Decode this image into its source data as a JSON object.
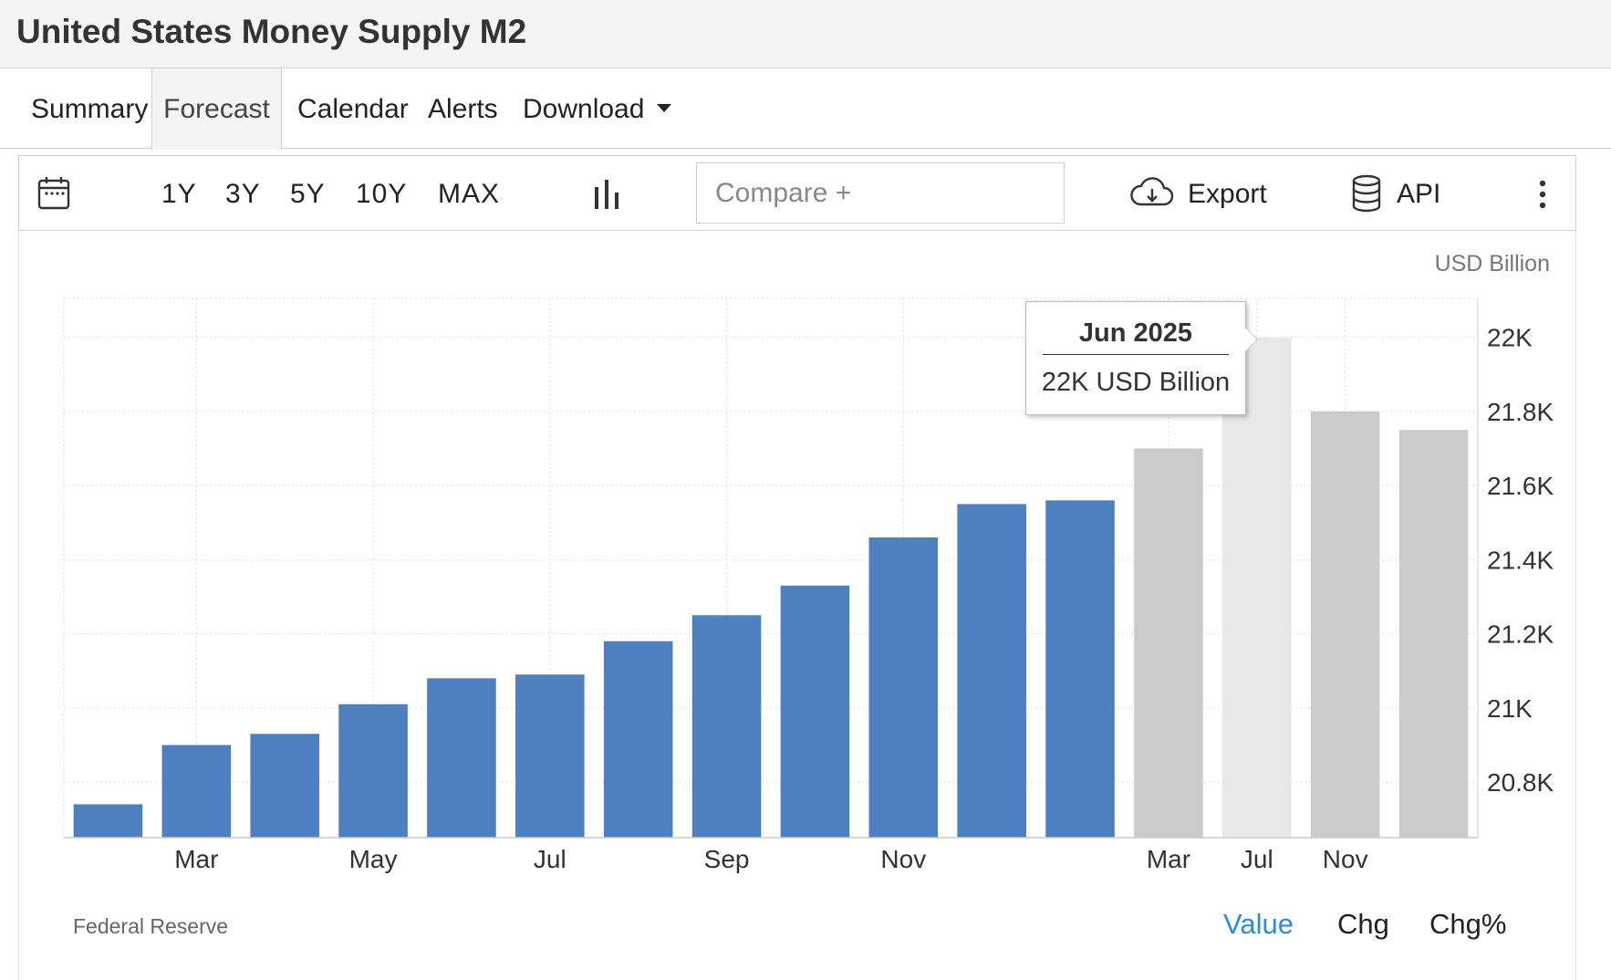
{
  "header": {
    "title": "United States Money Supply M2"
  },
  "tabs": [
    {
      "label": "Summary"
    },
    {
      "label": "Forecast"
    },
    {
      "label": "Calendar"
    },
    {
      "label": "Alerts"
    },
    {
      "label": "Download"
    }
  ],
  "active_tab": "Forecast",
  "toolbar": {
    "ranges": [
      "1Y",
      "3Y",
      "5Y",
      "10Y",
      "MAX"
    ],
    "compare_placeholder": "Compare +",
    "export_label": "Export",
    "api_label": "API"
  },
  "tooltip": {
    "date": "Jun 2025",
    "value": "22K USD Billion"
  },
  "footer": {
    "source": "Federal Reserve",
    "modes": [
      "Value",
      "Chg",
      "Chg%"
    ],
    "active_mode": "Value"
  },
  "colors": {
    "actual_bar": "#4e80bf",
    "forecast_bar": "#cbcbcb",
    "highlight_bar": "#e8e8e8",
    "active_mode": "#2f8bd6"
  },
  "chart_data": {
    "type": "bar",
    "unit_label": "USD Billion",
    "series": [
      {
        "name": "Actual",
        "values": [
          20.74,
          20.9,
          20.93,
          21.01,
          21.08,
          21.09,
          21.18,
          21.25,
          21.33,
          21.46,
          21.55,
          21.56
        ]
      },
      {
        "name": "Forecast",
        "values": [
          21.7,
          22.0,
          21.8,
          21.75
        ]
      }
    ],
    "x_tick_labels": [
      "Mar",
      "May",
      "Jul",
      "Sep",
      "Nov",
      "Mar",
      "Jul",
      "Nov"
    ],
    "y_tick_labels": [
      "22K",
      "21.8K",
      "21.6K",
      "21.4K",
      "21.2K",
      "21K",
      "20.8K"
    ],
    "y_ticks": [
      22,
      21.8,
      21.6,
      21.4,
      21.2,
      21,
      20.8
    ],
    "ylim": [
      20.65,
      22.1
    ],
    "y_axis_position": "right",
    "grid": true,
    "highlighted_period": "Jun 2025"
  }
}
